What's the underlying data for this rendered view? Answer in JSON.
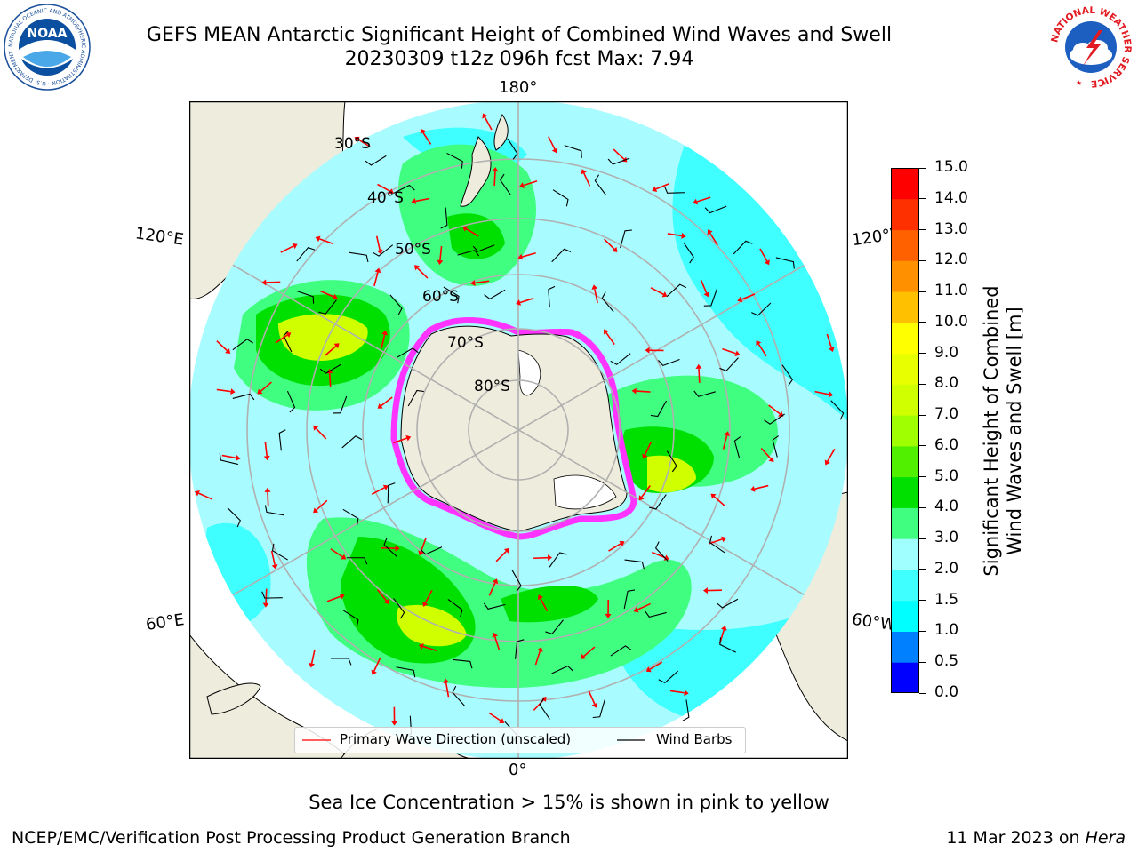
{
  "header": {
    "title_line1": "GEFS MEAN Antarctic Significant Height of Combined Wind Waves and Swell",
    "title_line2": "20230309 t12z 096h fcst   Max: 7.94"
  },
  "logos": {
    "left": {
      "text": "NOAA",
      "ring": "NATIONAL OCEANIC AND ATMOSPHERIC ADMINISTRATION · U.S. DEPARTMENT OF COMMERCE",
      "icon": "noaa-logo-icon"
    },
    "right": {
      "text": "NATIONAL WEATHER SERVICE",
      "icon": "nws-logo-icon"
    }
  },
  "map": {
    "projection": "south-polar-stereographic",
    "longitude_labels": {
      "top": "180°",
      "bottom": "0°",
      "upper_left": "120°E",
      "upper_right": "120°W",
      "lower_left": "60°E",
      "lower_right": "60°W"
    },
    "latitude_labels": [
      "30°S",
      "40°S",
      "50°S",
      "60°S",
      "70°S",
      "80°S"
    ],
    "colors": {
      "ocean_low": "#a8fcff",
      "land": "#eeecdc",
      "sea_ice_edge": "#ff33ff",
      "wave_arrow": "#ff0000",
      "wind_barb": "#000000",
      "graticule": "#b0b0b0"
    }
  },
  "colorbar": {
    "label_line1": "Significant Height of Combined",
    "label_line2": "Wind Waves and Swell [m]",
    "ticks": [
      "0.0",
      "0.5",
      "1.0",
      "1.5",
      "2.0",
      "3.0",
      "4.0",
      "5.0",
      "6.0",
      "7.0",
      "8.0",
      "9.0",
      "10.0",
      "11.0",
      "12.0",
      "13.0",
      "14.0",
      "15.0"
    ],
    "colors": [
      "#0000ff",
      "#0080ff",
      "#00ffff",
      "#40ffff",
      "#a0ffff",
      "#40ff80",
      "#00e000",
      "#50f000",
      "#a0ff00",
      "#d0ff00",
      "#e8ff00",
      "#ffff00",
      "#ffc000",
      "#ff9000",
      "#ff6000",
      "#ff3000",
      "#ff0000"
    ]
  },
  "legend": {
    "items": [
      {
        "label": "Primary Wave Direction (unscaled)",
        "color": "#ff0000"
      },
      {
        "label": "Wind Barbs",
        "color": "#000000"
      }
    ]
  },
  "caption": "Sea Ice Concentration > 15% is shown in pink to yellow",
  "footer": {
    "left": "NCEP/EMC/Verification Post Processing Product Generation Branch",
    "date": "11 Mar 2023 on",
    "host": "Hera"
  }
}
